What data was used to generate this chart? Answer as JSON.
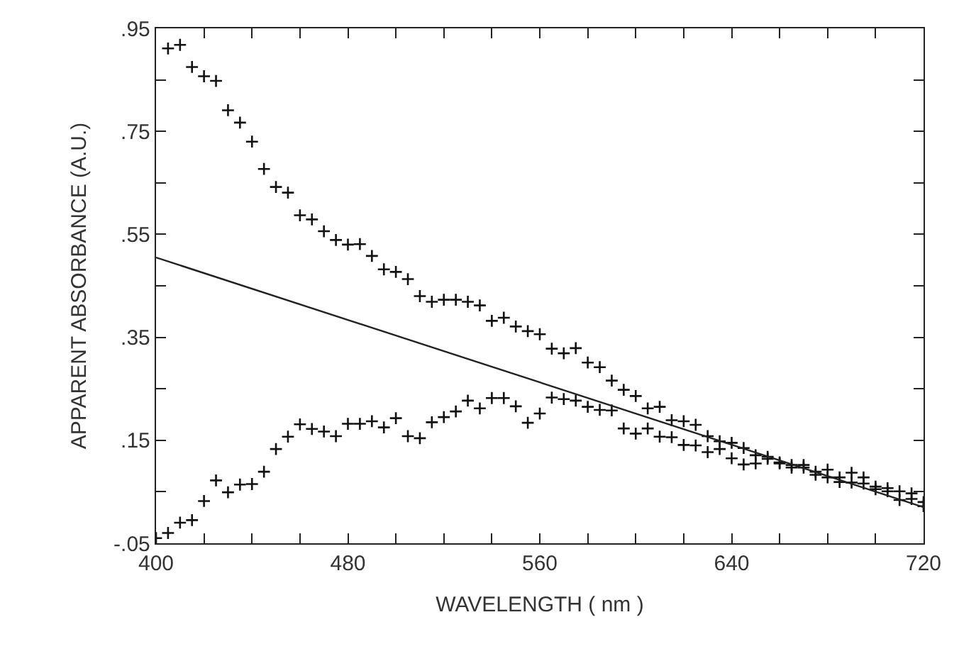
{
  "chart_data": {
    "type": "scatter",
    "xlabel": "WAVELENGTH ( nm )",
    "ylabel": "APPARENT ABSORBANCE (A.U.)",
    "xlim": [
      400,
      720
    ],
    "ylim": [
      -0.05,
      0.95
    ],
    "xticks": [
      400,
      {
        "value": 420,
        "label": null
      },
      {
        "value": 440,
        "label": null
      },
      {
        "value": 460,
        "label": null
      },
      480,
      {
        "value": 500,
        "label": null
      },
      {
        "value": 520,
        "label": null
      },
      {
        "value": 540,
        "label": null
      },
      560,
      {
        "value": 580,
        "label": null
      },
      {
        "value": 600,
        "label": null
      },
      {
        "value": 620,
        "label": null
      },
      640,
      {
        "value": 660,
        "label": null
      },
      {
        "value": 680,
        "label": null
      },
      {
        "value": 700,
        "label": null
      },
      720
    ],
    "yticks": [
      {
        "value": -0.05,
        "label": "-.05"
      },
      {
        "value": 0.05,
        "label": null
      },
      {
        "value": 0.15,
        "label": ".15"
      },
      {
        "value": 0.25,
        "label": null
      },
      {
        "value": 0.35,
        "label": ".35"
      },
      {
        "value": 0.45,
        "label": null
      },
      {
        "value": 0.55,
        "label": ".55"
      },
      {
        "value": 0.65,
        "label": null
      },
      {
        "value": 0.75,
        "label": ".75"
      },
      {
        "value": 0.85,
        "label": null
      },
      {
        "value": 0.95,
        "label": ".95"
      }
    ],
    "marker": "cross",
    "series": [
      {
        "color": "#111111",
        "x": [
          405,
          410,
          415,
          420,
          425,
          430,
          435,
          440,
          445,
          450,
          455,
          460,
          465,
          470,
          475,
          480,
          485,
          490,
          495,
          500,
          505,
          510,
          515,
          520,
          525,
          530,
          535,
          540,
          545,
          550,
          555,
          560,
          565,
          570,
          575,
          580,
          585,
          590,
          595,
          600,
          605,
          610,
          615,
          620,
          625,
          630,
          635,
          640,
          645,
          650,
          655,
          660,
          665,
          670,
          675,
          680,
          685,
          690,
          695,
          700,
          705,
          710,
          715,
          720
        ],
        "values": [
          0.911,
          0.918,
          0.875,
          0.857,
          0.848,
          0.791,
          0.767,
          0.73,
          0.677,
          0.642,
          0.631,
          0.587,
          0.579,
          0.556,
          0.539,
          0.53,
          0.531,
          0.508,
          0.482,
          0.477,
          0.463,
          0.43,
          0.419,
          0.423,
          0.423,
          0.419,
          0.412,
          0.382,
          0.388,
          0.371,
          0.362,
          0.356,
          0.328,
          0.319,
          0.329,
          0.301,
          0.292,
          0.266,
          0.248,
          0.236,
          0.212,
          0.215,
          0.189,
          0.187,
          0.18,
          0.158,
          0.148,
          0.145,
          0.135,
          0.121,
          0.118,
          0.107,
          0.102,
          0.102,
          0.089,
          0.093,
          0.078,
          0.087,
          0.078,
          0.06,
          0.057,
          0.051,
          0.047,
          0.03
        ]
      },
      {
        "color": "#111111",
        "x": [
          400,
          405,
          410,
          415,
          420,
          425,
          430,
          435,
          440,
          445,
          450,
          455,
          460,
          465,
          470,
          475,
          480,
          485,
          490,
          495,
          500,
          505,
          510,
          515,
          520,
          525,
          530,
          535,
          540,
          545,
          550,
          555,
          560,
          565,
          570,
          575,
          580,
          585,
          590,
          595,
          600,
          605,
          610,
          615,
          620,
          625,
          630,
          635,
          640,
          645,
          650,
          655,
          660,
          665,
          670,
          675,
          680,
          685,
          690,
          695,
          700,
          705,
          710,
          715,
          720
        ],
        "values": [
          -0.04,
          -0.03,
          -0.01,
          -0.005,
          0.032,
          0.072,
          0.049,
          0.064,
          0.065,
          0.089,
          0.133,
          0.157,
          0.181,
          0.172,
          0.167,
          0.158,
          0.182,
          0.182,
          0.187,
          0.175,
          0.193,
          0.158,
          0.154,
          0.185,
          0.195,
          0.206,
          0.227,
          0.212,
          0.232,
          0.232,
          0.216,
          0.184,
          0.202,
          0.233,
          0.23,
          0.227,
          0.215,
          0.209,
          0.208,
          0.173,
          0.163,
          0.173,
          0.157,
          0.156,
          0.141,
          0.14,
          0.127,
          0.133,
          0.115,
          0.103,
          0.105,
          0.114,
          0.105,
          0.097,
          0.097,
          0.083,
          0.078,
          0.069,
          0.068,
          0.066,
          0.055,
          0.051,
          0.034,
          0.036,
          0.022
        ]
      },
      {
        "type": "line",
        "color": "#222222",
        "marker": "none",
        "x": [
          400,
          720
        ],
        "values": [
          0.505,
          0.02
        ]
      }
    ]
  }
}
